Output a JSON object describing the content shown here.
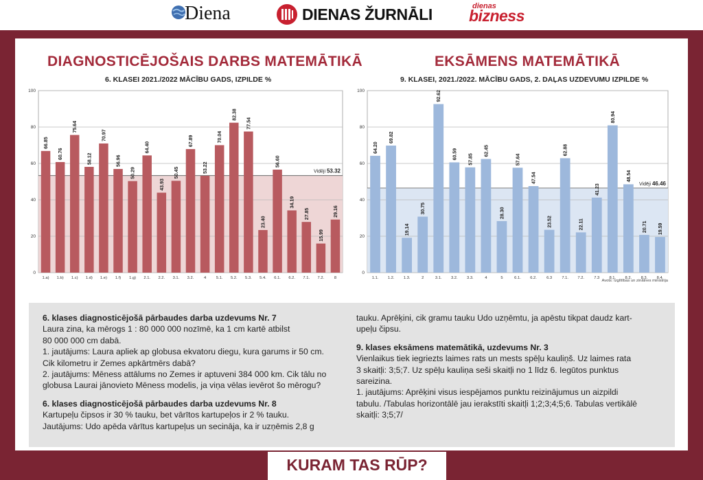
{
  "header": {
    "logo1": "Diena",
    "logo2": "DIENAS ŽURNĀLI",
    "logo3_top": "dienas",
    "logo3_bottom": "bizness"
  },
  "footer": {
    "text": "KURAM TAS RŪP?"
  },
  "chart_data": [
    {
      "type": "bar",
      "title": "DIAGNOSTICĒJOŠAIS DARBS MATEMĀTIKĀ",
      "subtitle": "6. KLASEI 2021./2022 MĀCĪBU GADS, IZPILDE %",
      "categories": [
        "1.a)",
        "1.b)",
        "1.c)",
        "1.d)",
        "1.e)",
        "1.f)",
        "1.g)",
        "2.1.",
        "2.2.",
        "3.1.",
        "3.2.",
        "4",
        "5.1.",
        "5.2.",
        "5.3.",
        "5.4.",
        "6.1.",
        "6.2.",
        "7.1.",
        "7.2.",
        "8"
      ],
      "values": [
        66.85,
        60.76,
        75.64,
        58.12,
        70.97,
        56.96,
        50.29,
        64.4,
        43.93,
        50.45,
        67.89,
        53.22,
        70.04,
        82.38,
        77.54,
        23.4,
        56.6,
        34.19,
        27.85,
        15.99,
        29.16
      ],
      "average_label": "Vidēji",
      "average": 53.32,
      "ylim": [
        0,
        100
      ],
      "yticks": [
        0,
        20,
        40,
        60,
        80,
        100
      ],
      "color": "#b85a5f",
      "band_color": "#eed6d6",
      "grid": true
    },
    {
      "type": "bar",
      "title": "EKSĀMENS MATEMĀTIKĀ",
      "subtitle": "9. KLASEI, 2021./2022. MĀCĪBU GADS, 2. DAĻAS UZDEVUMU IZPILDE %",
      "categories": [
        "1.1.",
        "1.2.",
        "1.3.",
        "2",
        "3.1.",
        "3.2.",
        "3.3.",
        "4",
        "5",
        "6.1.",
        "6.2.",
        "6.3",
        "7.1.",
        "7.2.",
        "7.3",
        "8.1.",
        "8.2.",
        "8.3.",
        "8.4."
      ],
      "values": [
        64.2,
        69.82,
        19.14,
        30.75,
        92.62,
        60.59,
        57.85,
        62.45,
        28.3,
        57.64,
        47.54,
        23.52,
        62.88,
        22.11,
        41.23,
        80.94,
        48.54,
        20.71,
        19.59
      ],
      "average_label": "Vidēji",
      "average": 46.46,
      "ylim": [
        0,
        100
      ],
      "yticks": [
        0,
        20,
        40,
        60,
        80,
        100
      ],
      "color": "#9db8dc",
      "band_color": "#dce6f3",
      "grid": true,
      "source": "Avots: Izglītības un zinātnes ministrija"
    }
  ],
  "text_left": [
    {
      "heading": "6. klases diagnosticējošā pārbaudes darba uzdevums Nr. 7",
      "lines": [
        "Laura zina, ka mērogs 1 : 80 000 000 nozīmē, ka 1 cm kartē atbilst",
        "80 000 000 cm dabā.",
        "1. jautājums: Laura apliek ap globusa ekvatoru diegu, kura garums ir 50 cm.",
        "Cik kilometru ir Zemes apkārtmērs dabā?",
        "2. jautājums: Mēness attālums no Zemes ir aptuveni 384 000 km. Cik tālu no",
        "globusa Laurai jānovieto Mēness modelis, ja viņa vēlas ievērot šo mērogu?"
      ]
    },
    {
      "heading": "6. klases diagnosticējošā pārbaudes darba uzdevums Nr. 8",
      "lines": [
        "Kartupeļu čipsos ir 30 % tauku, bet vārītos kartupeļos ir 2 % tauku.",
        "Jautājums: Udo apēda vārītus kartupeļus un secināja, ka ir uzņēmis 2,8 g"
      ]
    }
  ],
  "text_right": [
    {
      "heading": "",
      "lines": [
        "tauku. Aprēķini, cik gramu tauku Udo uzņēmtu, ja apēstu tikpat daudz kart-",
        "upeļu čipsu."
      ]
    },
    {
      "heading": "9. klases eksāmens matemātikā, uzdevums Nr. 3",
      "lines": [
        "Vienlaikus tiek iegriezts laimes rats un mests spēļu kauliņš. Uz laimes rata",
        "3 skaitļi: 3;5;7. Uz spēļu kauliņa seši skaitļi no 1 līdz 6. Iegūtos punktus",
        "sareizina.",
        "1. jautājums: Aprēķini visus iespējamos punktu reizinājumus un aizpildi",
        "tabulu. /Tabulas horizontālē jau ierakstīti skaitļi 1;2;3;4;5;6. Tabulas vertikālē",
        "skaitļi: 3;5;7/"
      ]
    }
  ]
}
